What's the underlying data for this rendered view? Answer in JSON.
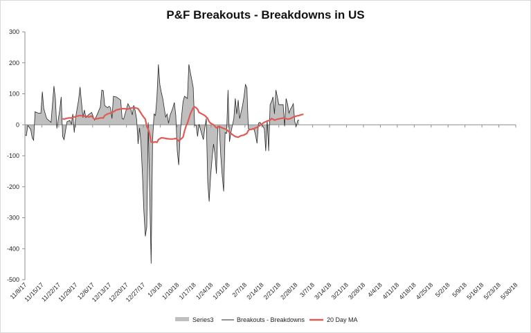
{
  "chart_data": {
    "type": "area",
    "title": "P&F Breakouts - Breakdowns in US",
    "xlabel": "",
    "ylabel": "",
    "ylim": [
      -500,
      300
    ],
    "yticks": [
      "300",
      "200",
      "100",
      "0",
      "-100",
      "-200",
      "-300",
      "-400",
      "-500"
    ],
    "xticks": [
      "11/8/17",
      "11/15/17",
      "11/22/17",
      "11/29/17",
      "12/6/17",
      "12/13/17",
      "12/20/17",
      "12/27/17",
      "1/3/18",
      "1/10/18",
      "1/17/18",
      "1/24/18",
      "1/31/18",
      "2/7/18",
      "2/14/18",
      "2/21/18",
      "2/28/18",
      "3/7/18",
      "3/14/18",
      "3/21/18",
      "3/28/18",
      "4/4/18",
      "4/11/18",
      "4/18/18",
      "4/25/18",
      "5/2/18",
      "5/9/18",
      "5/16/18",
      "5/23/18",
      "5/30/18"
    ],
    "grid": false,
    "legend_position": "bottom",
    "colors": {
      "area": "#bfbfbf",
      "line": "#262626",
      "ma": "#e05a55"
    },
    "series": [
      {
        "name": "Series3",
        "role": "area",
        "points": [
          [
            0,
            -32
          ],
          [
            0.6,
            -35
          ],
          [
            1.2,
            -2
          ],
          [
            2.4,
            -15
          ],
          [
            3,
            -42
          ],
          [
            3.6,
            -50
          ],
          [
            4.2,
            42
          ],
          [
            5.4,
            38
          ],
          [
            6.6,
            37
          ],
          [
            7.2,
            107
          ],
          [
            7.8,
            52
          ],
          [
            9,
            20
          ],
          [
            10.8,
            8
          ],
          [
            12,
            125
          ],
          [
            12.6,
            85
          ],
          [
            13.2,
            -12
          ],
          [
            14.4,
            48
          ],
          [
            15,
            90
          ],
          [
            15.6,
            -38
          ],
          [
            16.2,
            -48
          ],
          [
            17.4,
            10
          ],
          [
            18.6,
            14
          ],
          [
            19.2,
            2
          ],
          [
            19.8,
            35
          ],
          [
            20.4,
            -25
          ],
          [
            21,
            25
          ],
          [
            22.2,
            80
          ],
          [
            22.8,
            122
          ],
          [
            24,
            23
          ],
          [
            24.6,
            48
          ],
          [
            25.2,
            23
          ],
          [
            26.4,
            33
          ],
          [
            27.6,
            40
          ],
          [
            28.8,
            15
          ],
          [
            30,
            35
          ],
          [
            31.2,
            58
          ],
          [
            31.8,
            112
          ],
          [
            32.4,
            110
          ],
          [
            33,
            62
          ],
          [
            34.2,
            55
          ],
          [
            34.8,
            60
          ],
          [
            35.4,
            55
          ],
          [
            36,
            20
          ],
          [
            36.6,
            92
          ],
          [
            37.8,
            90
          ],
          [
            39.6,
            80
          ],
          [
            40.2,
            20
          ],
          [
            40.8,
            18
          ],
          [
            42.6,
            68
          ],
          [
            43.8,
            50
          ],
          [
            44.4,
            32
          ],
          [
            45,
            63
          ],
          [
            45.6,
            45
          ],
          [
            46.2,
            18
          ],
          [
            46.8,
            -62
          ],
          [
            47.4,
            -10
          ],
          [
            48,
            -60
          ],
          [
            48.6,
            -160
          ],
          [
            49.2,
            -280
          ],
          [
            49.8,
            -360
          ],
          [
            50.4,
            -330
          ],
          [
            51,
            8
          ],
          [
            51.6,
            -225
          ],
          [
            52.2,
            -448
          ],
          [
            52.8,
            -50
          ],
          [
            53.4,
            35
          ],
          [
            54,
            30
          ],
          [
            54.6,
            90
          ],
          [
            55.2,
            195
          ],
          [
            55.8,
            130
          ],
          [
            56.4,
            105
          ],
          [
            57,
            85
          ],
          [
            58.2,
            25
          ],
          [
            58.8,
            35
          ],
          [
            59.4,
            5
          ],
          [
            60,
            30
          ],
          [
            61.2,
            55
          ],
          [
            61.8,
            72
          ],
          [
            62.4,
            30
          ],
          [
            63,
            -85
          ],
          [
            63.6,
            -130
          ],
          [
            64.2,
            -35
          ],
          [
            64.8,
            28
          ],
          [
            65.4,
            75
          ],
          [
            66,
            92
          ],
          [
            67.2,
            85
          ],
          [
            67.8,
            195
          ],
          [
            68.4,
            170
          ],
          [
            69.6,
            120
          ],
          [
            70.2,
            -2
          ],
          [
            70.8,
            -2
          ],
          [
            71.4,
            -38
          ],
          [
            72,
            2
          ],
          [
            72.6,
            -15
          ],
          [
            73.8,
            -48
          ],
          [
            74.4,
            -10
          ],
          [
            75,
            20
          ],
          [
            75.6,
            -185
          ],
          [
            76.2,
            -248
          ],
          [
            76.8,
            -165
          ],
          [
            77.4,
            -110
          ],
          [
            78,
            -62
          ],
          [
            78.6,
            -95
          ],
          [
            79.2,
            -158
          ],
          [
            79.8,
            -5
          ],
          [
            80.4,
            -10
          ],
          [
            81,
            -100
          ],
          [
            81.6,
            -165
          ],
          [
            82.2,
            -215
          ],
          [
            82.8,
            -25
          ],
          [
            83.4,
            -28
          ],
          [
            84,
            112
          ],
          [
            84.6,
            -55
          ],
          [
            85.2,
            -25
          ],
          [
            86.4,
            20
          ],
          [
            87,
            85
          ],
          [
            87.6,
            35
          ],
          [
            88.2,
            80
          ],
          [
            88.8,
            20
          ],
          [
            90,
            62
          ],
          [
            90.6,
            90
          ],
          [
            91.2,
            130
          ],
          [
            91.8,
            120
          ],
          [
            92.4,
            -12
          ],
          [
            93,
            -15
          ],
          [
            94.2,
            -15
          ],
          [
            94.8,
            -15
          ],
          [
            95.4,
            -35
          ],
          [
            96,
            -60
          ],
          [
            96.6,
            5
          ],
          [
            97.2,
            8
          ],
          [
            98.4,
            -5
          ],
          [
            99,
            -12
          ],
          [
            99.6,
            -85
          ],
          [
            100.2,
            15
          ],
          [
            100.8,
            -85
          ],
          [
            101.4,
            65
          ],
          [
            102,
            75
          ],
          [
            102.6,
            90
          ],
          [
            103.2,
            35
          ],
          [
            103.8,
            112
          ],
          [
            104.4,
            90
          ],
          [
            105,
            65
          ],
          [
            106.8,
            65
          ],
          [
            107.4,
            -5
          ],
          [
            108,
            85
          ],
          [
            108.6,
            68
          ],
          [
            109.2,
            38
          ],
          [
            109.8,
            50
          ],
          [
            110.4,
            58
          ],
          [
            111,
            68
          ],
          [
            111.6,
            10
          ],
          [
            112.2,
            -5
          ],
          [
            112.8,
            14
          ],
          [
            113.4,
            15
          ]
        ]
      },
      {
        "name": "Breakouts - Breakdowns",
        "role": "line",
        "same_points_as": "Series3"
      },
      {
        "name": "20 Day MA",
        "role": "ma",
        "points": [
          [
            15.6,
            20
          ],
          [
            16.2,
            18
          ],
          [
            16.8,
            20
          ],
          [
            18,
            22
          ],
          [
            19.2,
            22
          ],
          [
            20.4,
            25
          ],
          [
            21.6,
            28
          ],
          [
            22.8,
            30
          ],
          [
            24,
            28
          ],
          [
            25.2,
            28
          ],
          [
            26.4,
            25
          ],
          [
            27.6,
            28
          ],
          [
            28.8,
            18
          ],
          [
            30,
            20
          ],
          [
            31.2,
            22
          ],
          [
            32.4,
            22
          ],
          [
            33,
            30
          ],
          [
            34.2,
            35
          ],
          [
            35.4,
            38
          ],
          [
            36.6,
            42
          ],
          [
            37.8,
            48
          ],
          [
            39,
            50
          ],
          [
            40.2,
            52
          ],
          [
            41.4,
            52
          ],
          [
            42,
            50
          ],
          [
            43.2,
            52
          ],
          [
            44.4,
            55
          ],
          [
            45.6,
            55
          ],
          [
            46.8,
            52
          ],
          [
            47.4,
            45
          ],
          [
            48.6,
            30
          ],
          [
            49.8,
            18
          ],
          [
            50.4,
            -5
          ],
          [
            51,
            -15
          ],
          [
            51.6,
            -30
          ],
          [
            52.2,
            -55
          ],
          [
            52.8,
            -57
          ],
          [
            54,
            -55
          ],
          [
            54.6,
            -57
          ],
          [
            55.2,
            -48
          ],
          [
            56.4,
            -42
          ],
          [
            57.6,
            -43
          ],
          [
            58.8,
            -45
          ],
          [
            60,
            -46
          ],
          [
            61.2,
            -46
          ],
          [
            62.4,
            -44
          ],
          [
            63,
            -48
          ],
          [
            63.6,
            -52
          ],
          [
            64.2,
            -48
          ],
          [
            65.4,
            -40
          ],
          [
            66,
            -20
          ],
          [
            66.6,
            -5
          ],
          [
            67.2,
            5
          ],
          [
            67.8,
            20
          ],
          [
            68.4,
            35
          ],
          [
            69,
            45
          ],
          [
            69.6,
            55
          ],
          [
            70.2,
            58
          ],
          [
            70.8,
            55
          ],
          [
            71.4,
            50
          ],
          [
            72,
            40
          ],
          [
            73.2,
            35
          ],
          [
            74.4,
            30
          ],
          [
            75,
            25
          ],
          [
            75.6,
            20
          ],
          [
            76.2,
            10
          ],
          [
            76.8,
            5
          ],
          [
            78,
            0
          ],
          [
            78.6,
            -5
          ],
          [
            79.2,
            -10
          ],
          [
            79.8,
            -8
          ],
          [
            80.4,
            -5
          ],
          [
            81,
            -8
          ],
          [
            82.2,
            -12
          ],
          [
            83.4,
            -15
          ],
          [
            84,
            -20
          ],
          [
            85.2,
            -28
          ],
          [
            86.4,
            -35
          ],
          [
            87,
            -38
          ],
          [
            88.2,
            -40
          ],
          [
            89.4,
            -35
          ],
          [
            90.6,
            -33
          ],
          [
            91.8,
            -28
          ],
          [
            92.4,
            -18
          ],
          [
            93,
            -15
          ],
          [
            93.6,
            -15
          ],
          [
            94.8,
            -12
          ],
          [
            96,
            -8
          ],
          [
            97.2,
            -2
          ],
          [
            98.4,
            5
          ],
          [
            99,
            8
          ],
          [
            100.2,
            12
          ],
          [
            101.4,
            15
          ],
          [
            102,
            20
          ],
          [
            102.6,
            18
          ],
          [
            103.2,
            15
          ],
          [
            104.4,
            18
          ],
          [
            105.6,
            20
          ],
          [
            106.8,
            22
          ],
          [
            108,
            20
          ],
          [
            108.6,
            18
          ],
          [
            109.8,
            20
          ],
          [
            111,
            25
          ],
          [
            112.2,
            28
          ],
          [
            113.4,
            30
          ],
          [
            114,
            32
          ],
          [
            115.2,
            34
          ]
        ]
      }
    ]
  }
}
